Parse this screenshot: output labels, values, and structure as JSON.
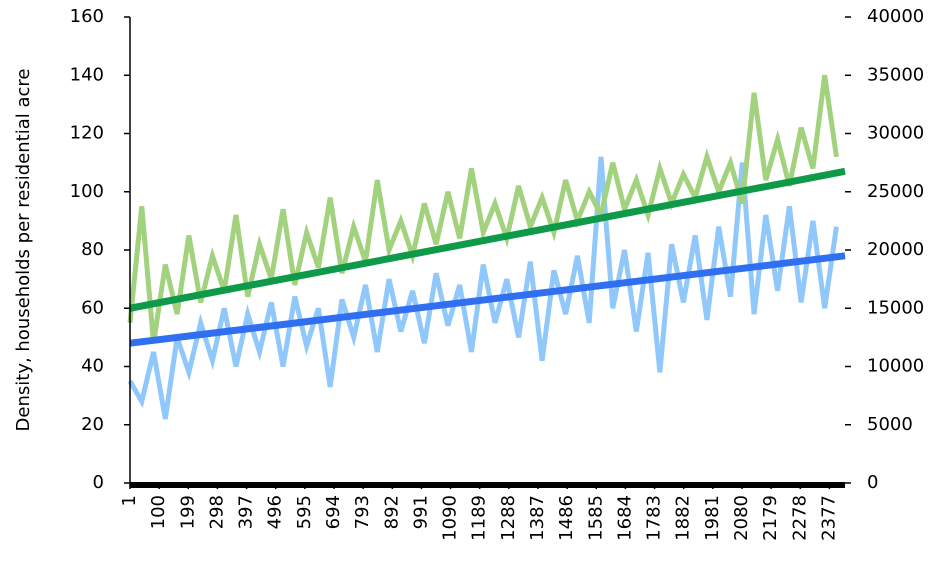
{
  "chart_data": {
    "type": "line",
    "y_label": "Density, households per residential acre",
    "xlim": [
      1,
      2430
    ],
    "xticks": [
      1,
      100,
      199,
      298,
      397,
      496,
      595,
      694,
      793,
      892,
      991,
      1090,
      1189,
      1288,
      1387,
      1486,
      1585,
      1684,
      1783,
      1882,
      1981,
      2080,
      2179,
      2278,
      2377
    ],
    "ylim": [
      0,
      160
    ],
    "yticks": [
      0,
      20,
      40,
      60,
      80,
      100,
      120,
      140,
      160
    ],
    "y2lim": [
      0,
      40000
    ],
    "y2ticks": [
      0,
      5000,
      10000,
      15000,
      20000,
      25000,
      30000,
      35000,
      40000
    ],
    "series": [
      {
        "color": "#90c8fb",
        "width": 5,
        "x": [
          1,
          41,
          81,
          121,
          161,
          201,
          241,
          281,
          321,
          361,
          401,
          441,
          481,
          521,
          561,
          601,
          641,
          681,
          721,
          761,
          801,
          841,
          881,
          921,
          961,
          1001,
          1041,
          1081,
          1121,
          1161,
          1201,
          1241,
          1281,
          1321,
          1361,
          1401,
          1441,
          1481,
          1521,
          1561,
          1601,
          1641,
          1681,
          1721,
          1761,
          1801,
          1841,
          1881,
          1921,
          1961,
          2001,
          2041,
          2081,
          2121,
          2161,
          2201,
          2241,
          2281,
          2321,
          2361,
          2401
        ],
        "values": [
          35,
          28,
          45,
          22,
          50,
          38,
          55,
          42,
          60,
          40,
          58,
          45,
          62,
          40,
          64,
          47,
          60,
          33,
          63,
          50,
          68,
          45,
          70,
          52,
          66,
          48,
          72,
          54,
          68,
          45,
          75,
          55,
          70,
          50,
          76,
          42,
          73,
          58,
          78,
          55,
          112,
          60,
          80,
          52,
          79,
          38,
          82,
          62,
          85,
          56,
          88,
          64,
          110,
          58,
          92,
          66,
          95,
          62,
          90,
          60,
          88
        ]
      },
      {
        "color": "#a3d27e",
        "width": 5,
        "axis": "y2",
        "x": [
          1,
          41,
          81,
          121,
          161,
          201,
          241,
          281,
          321,
          361,
          401,
          441,
          481,
          521,
          561,
          601,
          641,
          681,
          721,
          761,
          801,
          841,
          881,
          921,
          961,
          1001,
          1041,
          1081,
          1121,
          1161,
          1201,
          1241,
          1281,
          1321,
          1361,
          1401,
          1441,
          1481,
          1521,
          1561,
          1601,
          1641,
          1681,
          1721,
          1761,
          1801,
          1841,
          1881,
          1921,
          1961,
          2001,
          2041,
          2081,
          2121,
          2161,
          2201,
          2241,
          2281,
          2321,
          2361,
          2401
        ],
        "values": [
          13750,
          23750,
          12000,
          18750,
          14500,
          21250,
          15500,
          19500,
          16500,
          23000,
          16000,
          20500,
          17500,
          23500,
          17000,
          21500,
          18500,
          24500,
          18000,
          22000,
          19000,
          26000,
          20000,
          22500,
          19500,
          24000,
          20500,
          25000,
          21000,
          27000,
          21500,
          24000,
          21000,
          25500,
          22000,
          24500,
          21500,
          26000,
          22500,
          25000,
          23000,
          27500,
          23500,
          26000,
          23000,
          27000,
          24000,
          26500,
          24500,
          28000,
          25000,
          27500,
          24000,
          33500,
          26000,
          29500,
          25500,
          30500,
          27000,
          35000,
          28000
        ]
      },
      {
        "color": "#0f9a4a",
        "width": 7,
        "axis": "y2",
        "x": [
          1,
          2430
        ],
        "values": [
          15000,
          26750
        ]
      },
      {
        "color": "#2f6ff0",
        "width": 7,
        "x": [
          1,
          2430
        ],
        "values": [
          48,
          78
        ]
      }
    ]
  }
}
